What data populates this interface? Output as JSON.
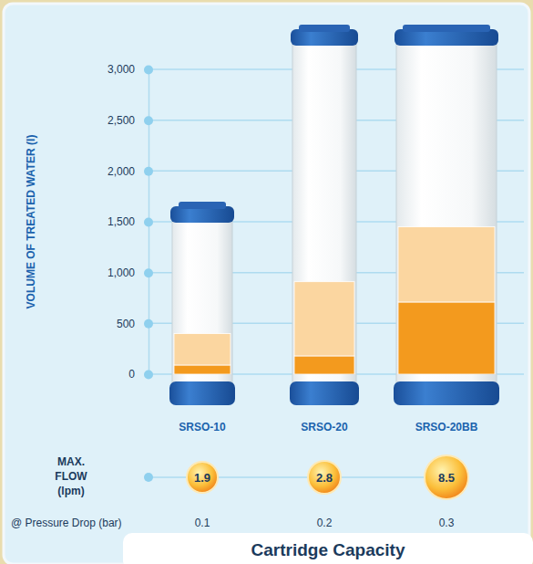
{
  "chart_data": {
    "type": "bar",
    "title": "Cartridge Capacity",
    "y_label": "VOLUME OF TREATED WATER (l)",
    "categories": [
      "SRSO-10",
      "SRSO-20",
      "SRSO-20BB"
    ],
    "stacked": true,
    "series": [
      {
        "color": "#f39a1e",
        "values": [
          90,
          180,
          710
        ]
      },
      {
        "color": "#fbd6a0",
        "values": [
          310,
          730,
          740
        ]
      }
    ],
    "ylim": [
      0,
      3000
    ],
    "yticks": [
      0,
      500,
      {
        "value": 1000,
        "label": "1,000"
      },
      {
        "value": 1500,
        "label": "1,500"
      },
      {
        "value": 2000,
        "label": "2,000"
      },
      {
        "value": 2500,
        "label": "2,500"
      },
      {
        "value": 3000,
        "label": "3,000"
      }
    ],
    "grid": true,
    "max_flow_label": "MAX. FLOW (lpm)",
    "max_flow": [
      1.9,
      2.8,
      8.5
    ],
    "pressure_drop_label": "@ Pressure Drop (bar)",
    "pressure_drop": [
      0.1,
      0.2,
      0.3
    ]
  }
}
